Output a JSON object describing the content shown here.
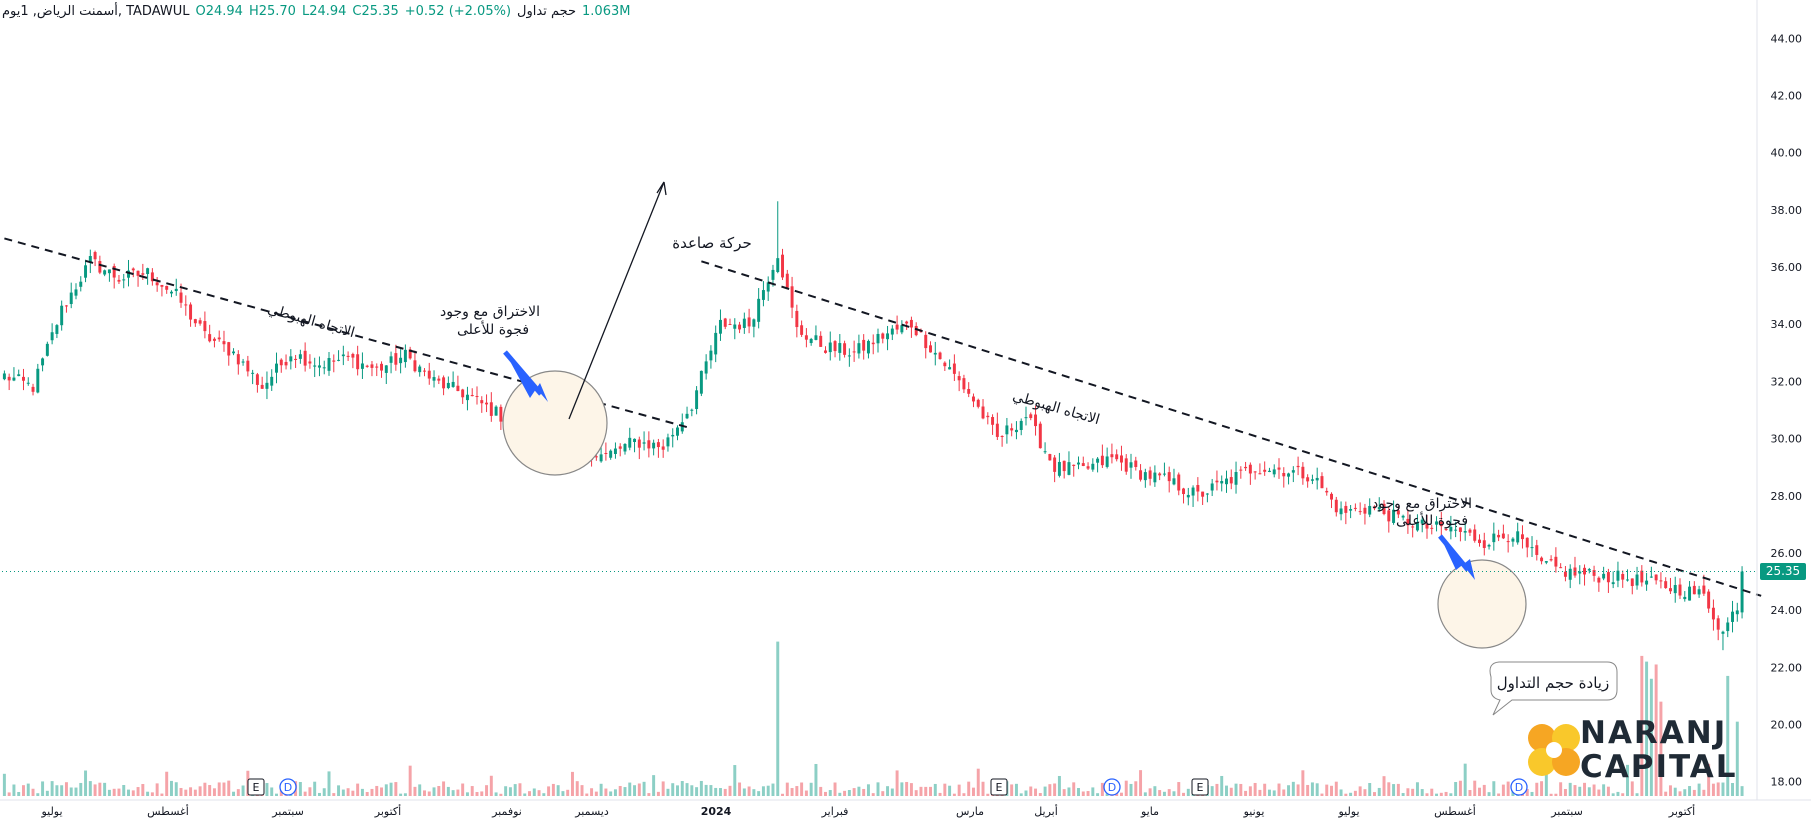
{
  "header": {
    "symbol_line": "أسمنت الرياض, 1يوم, TADAWUL",
    "open": "O24.94",
    "high": "H25.70",
    "low": "L24.94",
    "close": "C25.35",
    "change": "+0.52 (+2.05%)",
    "volume_label": "حجم تداول",
    "volume_value": "1.063M"
  },
  "current_price_label": "25.35",
  "colors": {
    "up": "#089981",
    "down": "#f23645",
    "up_volume": "#8ccfc5",
    "down_volume": "#f5a3a8",
    "accent_arrow": "#2962ff",
    "circle_fill": "#fdf5e8",
    "logo_orange": "#f6a623",
    "logo_yellow": "#f9c82b"
  },
  "annotations": {
    "downtrend_1": "الاتجاه الهبوطي",
    "downtrend_2": "الاتجاه الهبوطي",
    "breakout_1_line1": "الاختراق مع وجود",
    "breakout_1_line2": "فجوة للأعلى",
    "upmove": "حركة صاعدة",
    "breakout_2_line1": "الاختراق مع وجود",
    "breakout_2_line2": "فجوة للأعلى",
    "volume_increase": "زيادة حجم التداول"
  },
  "events": {
    "earnings_label": "E",
    "dividend_label": "D"
  },
  "logo": {
    "line1": "NARANJ",
    "line2": "CAPITAL"
  },
  "chart_data": {
    "type": "candlestick",
    "symbol": "أسمنت الرياض",
    "exchange": "TADAWUL",
    "interval": "1يوم",
    "y_ticks": [
      "44.00",
      "42.00",
      "40.00",
      "38.00",
      "36.00",
      "34.00",
      "32.00",
      "30.00",
      "28.00",
      "26.00",
      "24.00",
      "22.00",
      "20.00",
      "18.00"
    ],
    "ylim": [
      17.5,
      44.5
    ],
    "x_ticks": [
      "يوليو",
      "أغسطس",
      "سبتمبر",
      "أكتوبر",
      "نوفمبر",
      "ديسمبر",
      "2024",
      "فبراير",
      "مارس",
      "أبريل",
      "مايو",
      "يونيو",
      "يوليو",
      "أغسطس",
      "سبتمبر",
      "أكتوبر"
    ],
    "anchors": [
      [
        0,
        32.2
      ],
      [
        6,
        31.8
      ],
      [
        12,
        34.5
      ],
      [
        18,
        36.2
      ],
      [
        24,
        35.6
      ],
      [
        30,
        35.8
      ],
      [
        36,
        35.0
      ],
      [
        42,
        33.6
      ],
      [
        48,
        33.0
      ],
      [
        54,
        31.8
      ],
      [
        60,
        33.0
      ],
      [
        66,
        32.6
      ],
      [
        72,
        32.8
      ],
      [
        78,
        32.4
      ],
      [
        84,
        32.9
      ],
      [
        90,
        32.0
      ],
      [
        96,
        31.6
      ],
      [
        102,
        31.0
      ],
      [
        108,
        30.4
      ],
      [
        114,
        30.2
      ],
      [
        120,
        29.6
      ],
      [
        126,
        29.4
      ],
      [
        132,
        29.9
      ],
      [
        138,
        29.7
      ],
      [
        144,
        31.2
      ],
      [
        150,
        34.0
      ],
      [
        156,
        34.0
      ],
      [
        162,
        36.5
      ],
      [
        166,
        33.8
      ],
      [
        172,
        33.2
      ],
      [
        178,
        33.0
      ],
      [
        184,
        33.6
      ],
      [
        190,
        34.0
      ],
      [
        196,
        32.8
      ],
      [
        202,
        31.6
      ],
      [
        208,
        30.0
      ],
      [
        214,
        30.8
      ],
      [
        220,
        29.0
      ],
      [
        226,
        28.9
      ],
      [
        232,
        29.3
      ],
      [
        238,
        28.8
      ],
      [
        244,
        28.5
      ],
      [
        250,
        28.0
      ],
      [
        256,
        28.5
      ],
      [
        262,
        29.0
      ],
      [
        268,
        28.9
      ],
      [
        274,
        28.7
      ],
      [
        280,
        27.4
      ],
      [
        286,
        27.6
      ],
      [
        292,
        27.2
      ],
      [
        298,
        26.9
      ],
      [
        304,
        26.8
      ],
      [
        310,
        26.4
      ],
      [
        316,
        26.7
      ],
      [
        322,
        25.6
      ],
      [
        328,
        25.3
      ],
      [
        334,
        25.2
      ],
      [
        340,
        25.1
      ],
      [
        346,
        24.9
      ],
      [
        352,
        24.7
      ],
      [
        356,
        24.5
      ],
      [
        360,
        23.2
      ],
      [
        363,
        24.2
      ],
      [
        365,
        25.35
      ]
    ],
    "volume_spikes": [
      [
        162,
        22.9
      ],
      [
        343,
        22.4
      ],
      [
        344,
        22.2
      ],
      [
        345,
        21.6
      ],
      [
        346,
        22.1
      ],
      [
        347,
        20.8
      ],
      [
        361,
        21.7
      ],
      [
        363,
        20.1
      ],
      [
        365,
        22.0
      ]
    ],
    "trendlines": [
      {
        "name": "الاتجاه الهبوطي",
        "from": [
          0,
          37.0
        ],
        "to": [
          143,
          30.4
        ]
      },
      {
        "name": "الاتجاه الهبوطي",
        "from": [
          146,
          36.2
        ],
        "to": [
          368,
          24.5
        ]
      }
    ]
  }
}
